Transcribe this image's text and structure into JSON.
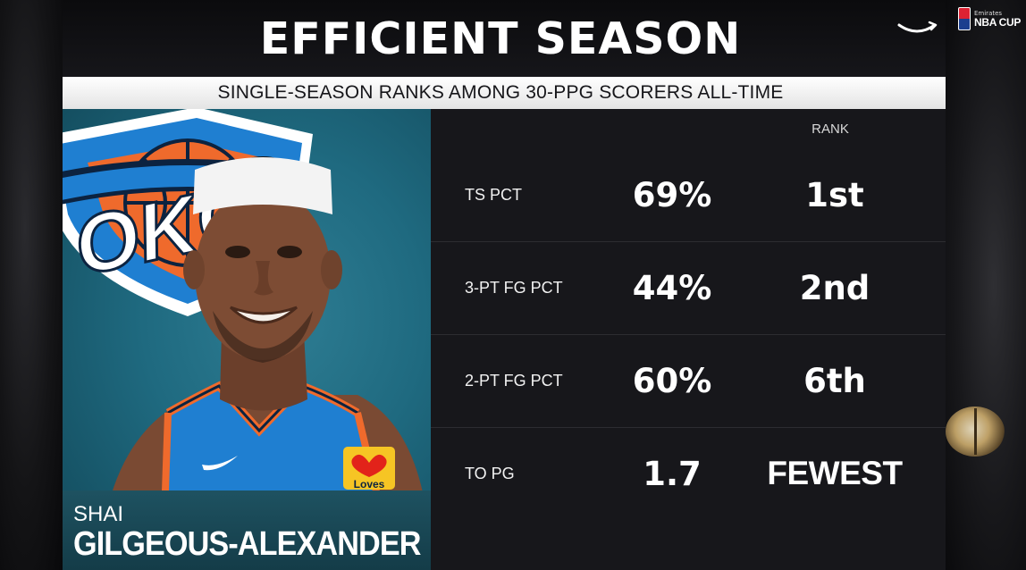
{
  "header": {
    "title": "EFFICIENT SEASON",
    "subtitle": "SINGLE-SEASON RANKS AMONG 30-PPG SCORERS ALL-TIME",
    "broadcaster_icon": "prime-smile-icon"
  },
  "corner_logo": {
    "small_text": "Emirates",
    "big_text": "NBA CUP"
  },
  "team": {
    "logo_text": "OKC",
    "jersey_sponsor": "Loves"
  },
  "player": {
    "first_name": "SHAI",
    "last_name": "GILGEOUS-ALEXANDER"
  },
  "table": {
    "rank_header": "RANK",
    "rows": [
      {
        "stat": "TS PCT",
        "value": "69%",
        "rank": "1st"
      },
      {
        "stat": "3-PT FG PCT",
        "value": "44%",
        "rank": "2nd"
      },
      {
        "stat": "2-PT FG PCT",
        "value": "60%",
        "rank": "6th"
      },
      {
        "stat": "TO PG",
        "value": "1.7",
        "rank": "FEWEST"
      }
    ]
  },
  "colors": {
    "panel_bg": "#121215",
    "subtitle_bg": "#ffffff",
    "photo_bg": "#1f6a80",
    "okc_blue": "#1f7fd1",
    "okc_orange": "#ef6a2c",
    "okc_navy": "#0c2340"
  }
}
